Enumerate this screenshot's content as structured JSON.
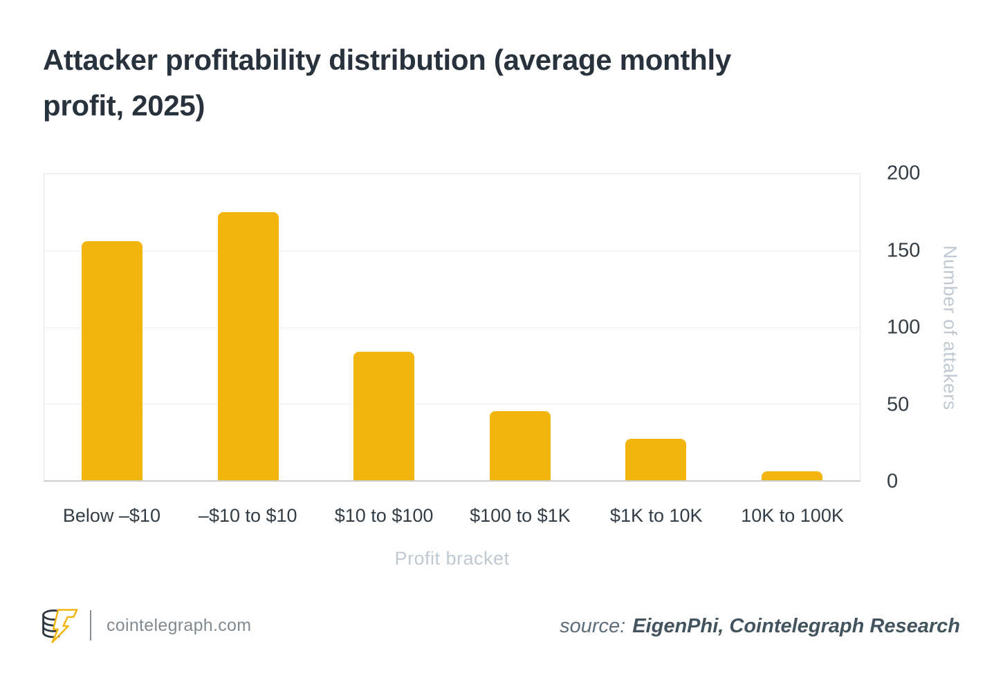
{
  "title": {
    "line1": "Attacker profitability distribution (average monthly",
    "line2": "profit, 2025)",
    "full": "Attacker profitability distribution (average monthly profit, 2025)"
  },
  "chart_data": {
    "type": "bar",
    "title": "Attacker profitability distribution (average monthly profit, 2025)",
    "categories": [
      "Below –$10",
      "–$10 to $10",
      "$10 to $100",
      "$100 to $1K",
      "$1K to 10K",
      "10K to 100K"
    ],
    "values": [
      156,
      175,
      84,
      45,
      27,
      6
    ],
    "xlabel": "Profit bracket",
    "ylabel": "Number of attakers",
    "ylim": [
      0,
      200
    ],
    "yticks": [
      0,
      50,
      100,
      150,
      200
    ],
    "ytick_side": "right",
    "grid": true,
    "legend": false,
    "bar_color": "#F2B50D"
  },
  "colors": {
    "bar": "#F2B50D",
    "title_text": "#28323C",
    "tick_text": "#333D46",
    "axis_label_text": "#C0C9D2",
    "gridline": "#E9EEF2",
    "plot_border": "#DFE5EA",
    "axis_line": "#C9D1D8",
    "footer_text": "#82898F",
    "source_label": "#5D6E7A",
    "source_value": "#43545F"
  },
  "footer": {
    "site": "cointelegraph.com",
    "source_label": "source:",
    "source_value": "EigenPhi, Cointelegraph Research"
  }
}
